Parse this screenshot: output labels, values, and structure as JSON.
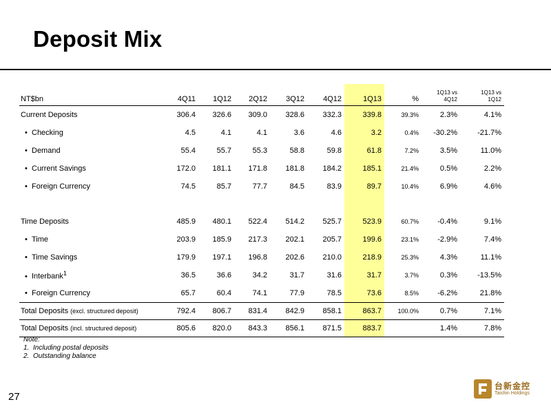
{
  "title": "Deposit Mix",
  "page_number": "27",
  "logo": {
    "cn": "台新金控",
    "en": "Taishin Holdings"
  },
  "colors": {
    "highlight": "#ffff99",
    "logo_gold": "#b8862c"
  },
  "table": {
    "headers": {
      "label": "NT$bn",
      "periods": [
        "4Q11",
        "1Q12",
        "2Q12",
        "3Q12",
        "4Q12",
        "1Q13"
      ],
      "pct": "%",
      "vs_q_top": "1Q13 vs",
      "vs_q_bottom": "4Q12",
      "vs_y_top": "1Q13 vs",
      "vs_y_bottom": "1Q12"
    },
    "rows": [
      {
        "label": "Current Deposits",
        "values": [
          "306.4",
          "326.6",
          "309.0",
          "328.6",
          "332.3",
          "339.8"
        ],
        "pct": "39.3%",
        "qoq": "2.3%",
        "yoy": "4.1%"
      },
      {
        "label": "Checking",
        "values": [
          "4.5",
          "4.1",
          "4.1",
          "3.6",
          "4.6",
          "3.2"
        ],
        "pct": "0.4%",
        "qoq": "-30.2%",
        "yoy": "-21.7%"
      },
      {
        "label": "Demand",
        "values": [
          "55.4",
          "55.7",
          "55.3",
          "58.8",
          "59.8",
          "61.8"
        ],
        "pct": "7.2%",
        "qoq": "3.5%",
        "yoy": "11.0%"
      },
      {
        "label": "Current Savings",
        "values": [
          "172.0",
          "181.1",
          "171.8",
          "181.8",
          "184.2",
          "185.1"
        ],
        "pct": "21.4%",
        "qoq": "0.5%",
        "yoy": "2.2%"
      },
      {
        "label": "Foreign Currency",
        "values": [
          "74.5",
          "85.7",
          "77.7",
          "84.5",
          "83.9",
          "89.7"
        ],
        "pct": "10.4%",
        "qoq": "6.9%",
        "yoy": "4.6%"
      },
      {
        "label": "Time Deposits",
        "values": [
          "485.9",
          "480.1",
          "522.4",
          "514.2",
          "525.7",
          "523.9"
        ],
        "pct": "60.7%",
        "qoq": "-0.4%",
        "yoy": "9.1%"
      },
      {
        "label": "Time",
        "values": [
          "203.9",
          "185.9",
          "217.3",
          "202.1",
          "205.7",
          "199.6"
        ],
        "pct": "23.1%",
        "qoq": "-2.9%",
        "yoy": "7.4%"
      },
      {
        "label": "Time Savings",
        "values": [
          "179.9",
          "197.1",
          "196.8",
          "202.6",
          "210.0",
          "218.9"
        ],
        "pct": "25.3%",
        "qoq": "4.3%",
        "yoy": "11.1%"
      },
      {
        "label": "Interbank",
        "sup": "1",
        "values": [
          "36.5",
          "36.6",
          "34.2",
          "31.7",
          "31.6",
          "31.7"
        ],
        "pct": "3.7%",
        "qoq": "0.3%",
        "yoy": "-13.5%"
      },
      {
        "label": "Foreign Currency",
        "values": [
          "65.7",
          "60.4",
          "74.1",
          "77.9",
          "78.5",
          "73.6"
        ],
        "pct": "8.5%",
        "qoq": "-6.2%",
        "yoy": "21.8%"
      },
      {
        "label": "Total Deposits",
        "note": "(excl. structured deposit)",
        "values": [
          "792.4",
          "806.7",
          "831.4",
          "842.9",
          "858.1",
          "863.7"
        ],
        "pct": "100.0%",
        "qoq": "0.7%",
        "yoy": "7.1%"
      },
      {
        "label": "Total Deposits",
        "note": "(incl. structured deposit)",
        "values": [
          "805.6",
          "820.0",
          "843.3",
          "856.1",
          "871.5",
          "883.7"
        ],
        "pct": "",
        "qoq": "1.4%",
        "yoy": "7.8%"
      }
    ]
  },
  "notes": {
    "heading": "Note:",
    "items": [
      {
        "num": "1.",
        "text": "Including postal deposits"
      },
      {
        "num": "2.",
        "text": "Outstanding balance"
      }
    ]
  }
}
